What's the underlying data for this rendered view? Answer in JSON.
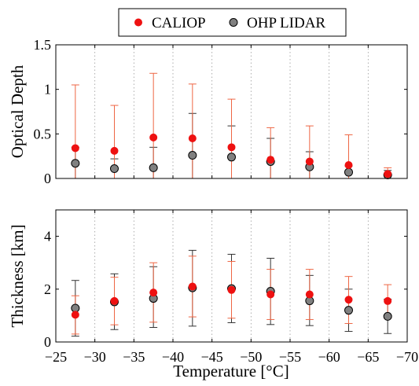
{
  "chart_data": [
    {
      "type": "scatter",
      "title": "",
      "xlabel": "",
      "ylabel": "Optical Depth",
      "xlim": [
        -25,
        -70
      ],
      "ylim": [
        0,
        1.5
      ],
      "yticks": [
        0,
        0.5,
        1,
        1.5
      ],
      "ytick_labels": [
        "0",
        "0.5",
        "1",
        "1.5"
      ],
      "grid": "vertical dotted",
      "series": [
        {
          "name": "CALIOP",
          "color": "#ee1111",
          "err_color": "#ee6644",
          "x": [
            -27.5,
            -32.5,
            -37.5,
            -42.5,
            -47.5,
            -52.5,
            -57.5,
            -62.5,
            -67.5
          ],
          "y": [
            0.34,
            0.31,
            0.46,
            0.45,
            0.35,
            0.21,
            0.19,
            0.15,
            0.05
          ],
          "err_low": [
            0.0,
            0.0,
            0.0,
            0.0,
            0.0,
            0.0,
            0.0,
            0.0,
            0.0
          ],
          "err_high": [
            1.05,
            0.82,
            1.18,
            1.06,
            0.89,
            0.57,
            0.59,
            0.49,
            0.12
          ]
        },
        {
          "name": "OHP LIDAR",
          "color": "#808080",
          "err_color": "#333333",
          "x": [
            -27.5,
            -32.5,
            -37.5,
            -42.5,
            -47.5,
            -52.5,
            -57.5,
            -62.5,
            -67.5
          ],
          "y": [
            0.17,
            0.11,
            0.12,
            0.26,
            0.24,
            0.19,
            0.13,
            0.07,
            0.04
          ],
          "err_low": [
            0.0,
            0.0,
            0.0,
            0.0,
            0.0,
            0.0,
            0.0,
            0.0,
            0.0
          ],
          "err_high": [
            0.35,
            0.22,
            0.35,
            0.73,
            0.59,
            0.45,
            0.3,
            0.14,
            0.09
          ]
        }
      ]
    },
    {
      "type": "scatter",
      "title": "",
      "xlabel": "Temperature [°C]",
      "ylabel": "Thickness [km]",
      "xlim": [
        -25,
        -70
      ],
      "ylim": [
        0,
        5
      ],
      "xticks": [
        -25,
        -30,
        -35,
        -40,
        -45,
        -50,
        -55,
        -60,
        -65,
        -70
      ],
      "xtick_labels": [
        "−25",
        "−30",
        "−35",
        "−40",
        "−45",
        "−50",
        "−55",
        "−60",
        "−65",
        "−70"
      ],
      "yticks": [
        0,
        2,
        4
      ],
      "ytick_labels": [
        "0",
        "2",
        "4"
      ],
      "grid": "vertical dotted",
      "series": [
        {
          "name": "CALIOP",
          "color": "#ee1111",
          "err_color": "#ee6644",
          "x": [
            -27.5,
            -32.5,
            -37.5,
            -42.5,
            -47.5,
            -52.5,
            -57.5,
            -62.5,
            -67.5
          ],
          "y": [
            1.03,
            1.55,
            1.87,
            2.1,
            1.97,
            1.8,
            1.8,
            1.6,
            1.55
          ],
          "err_low": [
            0.3,
            0.65,
            0.75,
            0.95,
            0.9,
            0.85,
            0.85,
            0.7,
            0.9
          ],
          "err_high": [
            1.75,
            2.45,
            3.0,
            3.25,
            3.05,
            2.75,
            2.75,
            2.48,
            2.17
          ]
        },
        {
          "name": "OHP LIDAR",
          "color": "#808080",
          "err_color": "#333333",
          "x": [
            -27.5,
            -32.5,
            -37.5,
            -42.5,
            -47.5,
            -52.5,
            -57.5,
            -62.5,
            -67.5
          ],
          "y": [
            1.28,
            1.52,
            1.65,
            2.05,
            2.02,
            1.92,
            1.56,
            1.2,
            0.97
          ],
          "err_low": [
            0.22,
            0.47,
            0.55,
            0.6,
            0.73,
            0.66,
            0.62,
            0.4,
            0.32
          ],
          "err_high": [
            2.33,
            2.58,
            2.85,
            3.47,
            3.32,
            3.17,
            2.52,
            2.0,
            1.62
          ]
        }
      ]
    }
  ],
  "legend": {
    "items": [
      {
        "label": "CALIOP",
        "color": "#ee1111"
      },
      {
        "label": "OHP LIDAR",
        "color": "#808080"
      }
    ]
  }
}
